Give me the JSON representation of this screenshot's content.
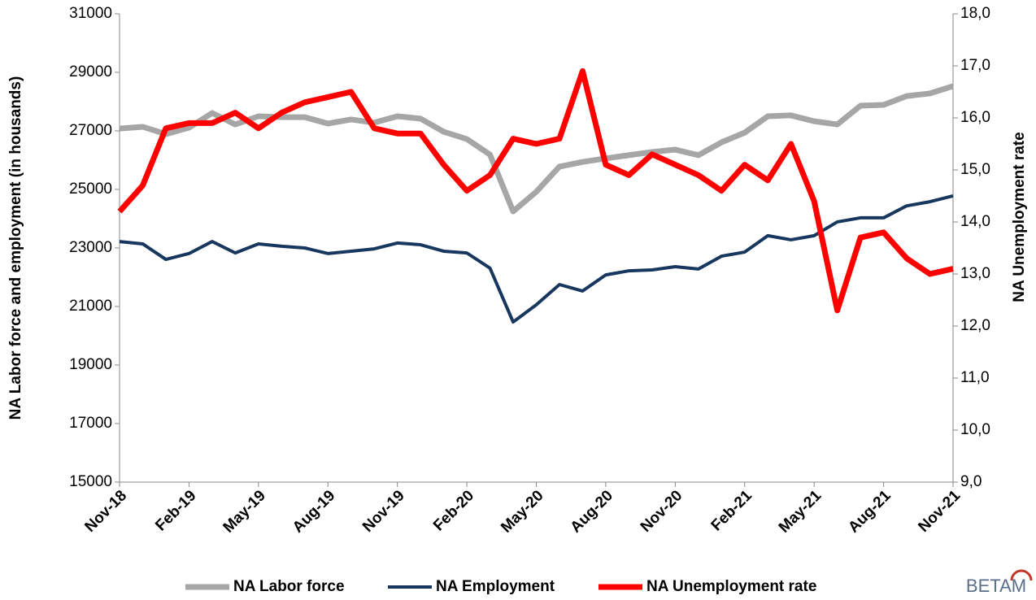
{
  "chart_data": {
    "type": "line",
    "y_label": "NA Labor force and employment (in housands)",
    "y2_label": "NA Unemployment rate",
    "logo": "BETAM",
    "categories": [
      "Nov-18",
      null,
      null,
      "Feb-19",
      null,
      null,
      "May-19",
      null,
      null,
      "Aug-19",
      null,
      null,
      "Nov-19",
      null,
      null,
      "Feb-20",
      null,
      null,
      "May-20",
      null,
      null,
      "Aug-20",
      null,
      null,
      "Nov-20",
      null,
      null,
      "Feb-21",
      null,
      null,
      "May-21",
      null,
      null,
      "Aug-21",
      null,
      null,
      "Nov-21"
    ],
    "series": [
      {
        "name": "NA Labor force",
        "color": "#a6a6a6",
        "values": [
          27080,
          27140,
          26890,
          27110,
          27610,
          27220,
          27500,
          27470,
          27470,
          27250,
          27390,
          27280,
          27500,
          27420,
          26970,
          26720,
          26190,
          24250,
          24920,
          25780,
          25940,
          26060,
          26170,
          26280,
          26360,
          26170,
          26610,
          26940,
          27500,
          27530,
          27330,
          27220,
          27860,
          27890,
          28190,
          28280,
          28530
        ]
      },
      {
        "name": "NA Employment",
        "color": "#17375e",
        "values": [
          23220,
          23140,
          22610,
          22810,
          23220,
          22830,
          23140,
          23060,
          23000,
          22810,
          22890,
          22970,
          23170,
          23110,
          22890,
          22830,
          22310,
          20470,
          21060,
          21750,
          21530,
          22080,
          22220,
          22250,
          22360,
          22280,
          22720,
          22860,
          23420,
          23280,
          23420,
          23890,
          24030,
          24030,
          24440,
          24580,
          24780
        ]
      },
      {
        "name": "NA Unemployment rate",
        "color": "#ff0000",
        "axis": "y2",
        "values": [
          14.2,
          14.7,
          15.8,
          15.9,
          15.9,
          16.1,
          15.8,
          16.1,
          16.3,
          16.4,
          16.5,
          15.8,
          15.7,
          15.7,
          15.1,
          14.6,
          14.9,
          15.6,
          15.5,
          15.6,
          16.9,
          15.1,
          14.9,
          15.3,
          15.1,
          14.9,
          14.6,
          15.1,
          14.8,
          15.5,
          14.4,
          12.3,
          13.7,
          13.8,
          13.3,
          13.0,
          13.1
        ]
      }
    ],
    "ylim": [
      15000,
      31000
    ],
    "yticks": [
      15000,
      17000,
      19000,
      21000,
      23000,
      25000,
      27000,
      29000,
      31000
    ],
    "y2lim": [
      9,
      18
    ],
    "y2ticks": [
      {
        "value": 9,
        "label": "9,0"
      },
      {
        "value": 10,
        "label": "10,0"
      },
      {
        "value": 11,
        "label": "11,0"
      },
      {
        "value": 12,
        "label": "12,0"
      },
      {
        "value": 13,
        "label": "13,0"
      },
      {
        "value": 14,
        "label": "14,0"
      },
      {
        "value": 15,
        "label": "15,0"
      },
      {
        "value": 16,
        "label": "16,0"
      },
      {
        "value": 17,
        "label": "17,0"
      },
      {
        "value": 18,
        "label": "18,0"
      }
    ],
    "legend": "bottom"
  }
}
